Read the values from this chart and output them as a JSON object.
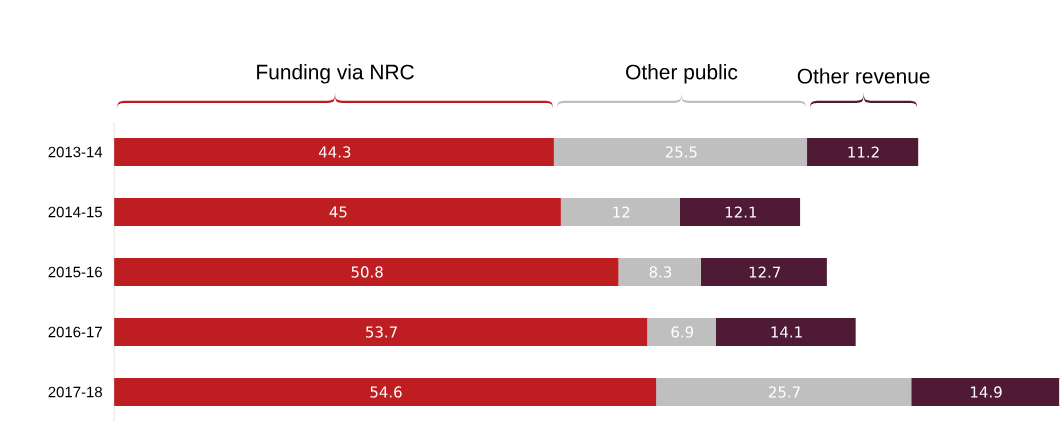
{
  "chart_data": {
    "type": "bar",
    "orientation": "horizontal",
    "stacked": true,
    "data_labels": true,
    "legend": "top",
    "categories": [
      "2013-14",
      "2014-15",
      "2015-16",
      "2016-17",
      "2017-18"
    ],
    "series": [
      {
        "name": "Funding via NRC",
        "color": "#be1e22",
        "values": [
          44.3,
          45,
          50.8,
          53.7,
          54.6
        ]
      },
      {
        "name": "Other public",
        "color": "#bfbfbf",
        "values": [
          25.5,
          12,
          8.3,
          6.9,
          25.7
        ]
      },
      {
        "name": "Other revenue",
        "color": "#4f1a36",
        "values": [
          11.2,
          12.1,
          12.7,
          14.1,
          14.9
        ]
      }
    ]
  }
}
